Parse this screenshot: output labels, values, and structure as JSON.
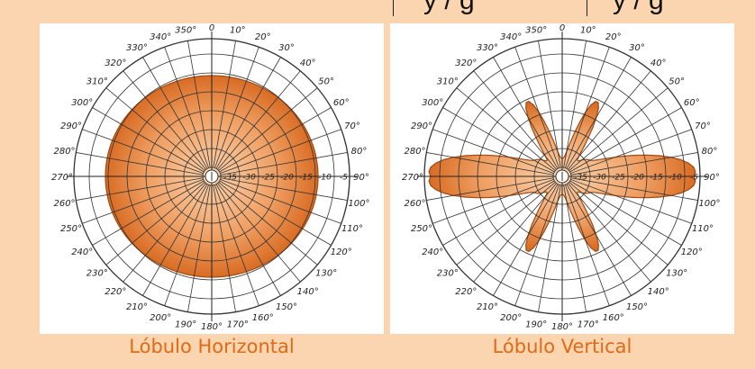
{
  "header_fragments": {
    "left": "y   /   g",
    "right": "y   /   g"
  },
  "diagrams": [
    {
      "id": "horizontal",
      "caption": "Lóbulo Horizontal",
      "lobe_fill": "#e8843c",
      "angle_labels": [
        "0",
        "10°",
        "20°",
        "30°",
        "40°",
        "50°",
        "60°",
        "70°",
        "80°",
        "90°",
        "100°",
        "110°",
        "120°",
        "130°",
        "140°",
        "150°",
        "160°",
        "170°",
        "180°",
        "190°",
        "200°",
        "210°",
        "220°",
        "230°",
        "240°",
        "250°",
        "260°",
        "270°",
        "280°",
        "290°",
        "300°",
        "310°",
        "320°",
        "330°",
        "340°",
        "350°"
      ],
      "db_labels": [
        "-35",
        "-30",
        "-25",
        "-20",
        "-15",
        "-10",
        "-5"
      ]
    },
    {
      "id": "vertical",
      "caption": "Lóbulo Vertical",
      "lobe_fill": "#e8843c",
      "angle_labels": [
        "0",
        "10°",
        "20°",
        "30°",
        "40°",
        "50°",
        "60°",
        "70°",
        "80°",
        "90°",
        "100°",
        "110°",
        "120°",
        "130°",
        "140°",
        "150°",
        "160°",
        "170°",
        "180°",
        "190°",
        "200°",
        "210°",
        "220°",
        "230°",
        "240°",
        "250°",
        "260°",
        "270°",
        "280°",
        "290°",
        "300°",
        "310°",
        "320°",
        "330°",
        "340°",
        "350°"
      ],
      "db_labels": [
        "-35",
        "-30",
        "-25",
        "-20",
        "-15",
        "-10",
        "-5"
      ]
    }
  ]
}
